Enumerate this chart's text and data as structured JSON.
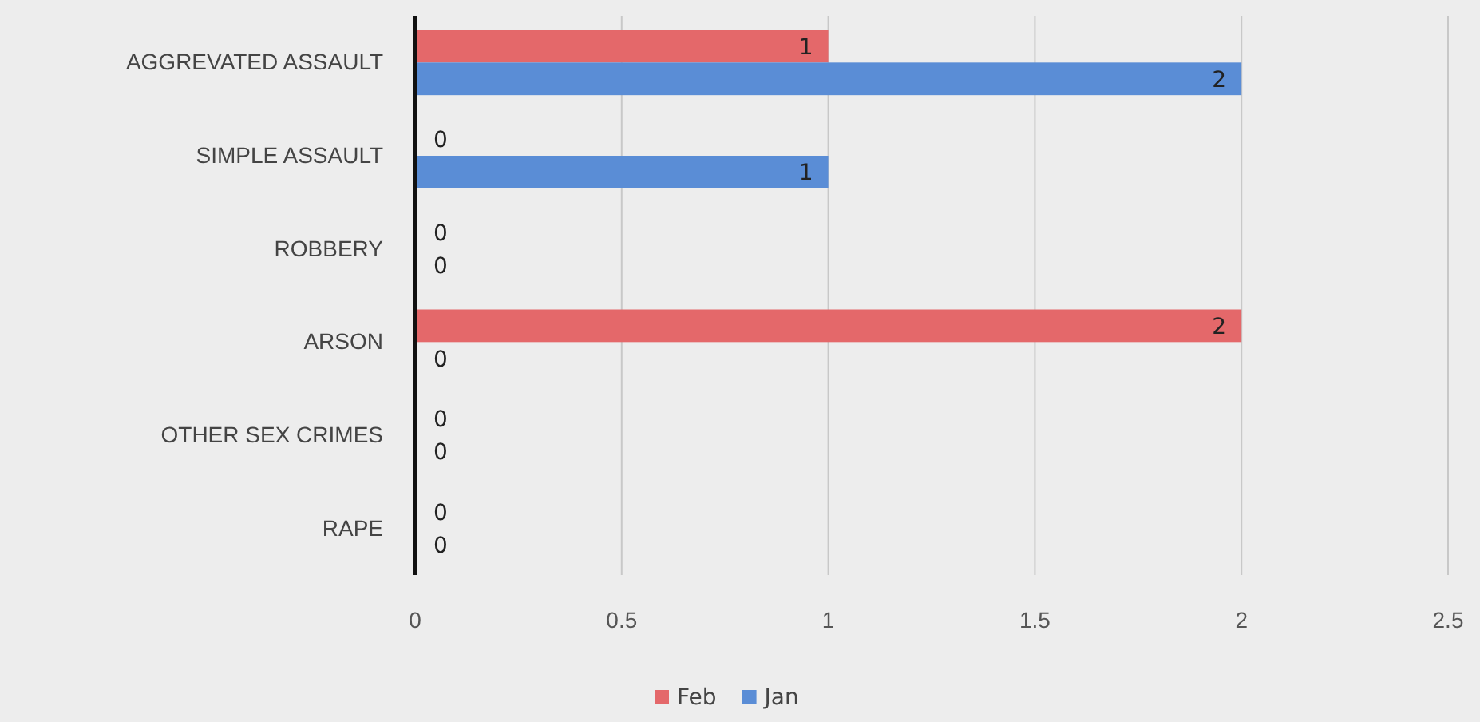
{
  "chart_data": {
    "type": "bar",
    "orientation": "horizontal",
    "categories": [
      "AGGREVATED ASSAULT",
      "SIMPLE ASSAULT",
      "ROBBERY",
      "ARSON",
      "OTHER SEX CRIMES",
      "RAPE"
    ],
    "series": [
      {
        "name": "Feb",
        "color": "#e4686a",
        "values": [
          1,
          0,
          0,
          2,
          0,
          0
        ]
      },
      {
        "name": "Jan",
        "color": "#5a8dd6",
        "values": [
          2,
          1,
          0,
          0,
          0,
          0
        ]
      }
    ],
    "xlim": [
      0,
      2.5
    ],
    "xticks": [
      0,
      0.5,
      1,
      1.5,
      2,
      2.5
    ],
    "grid": "x",
    "legend": "bottom",
    "data_labels": true
  }
}
